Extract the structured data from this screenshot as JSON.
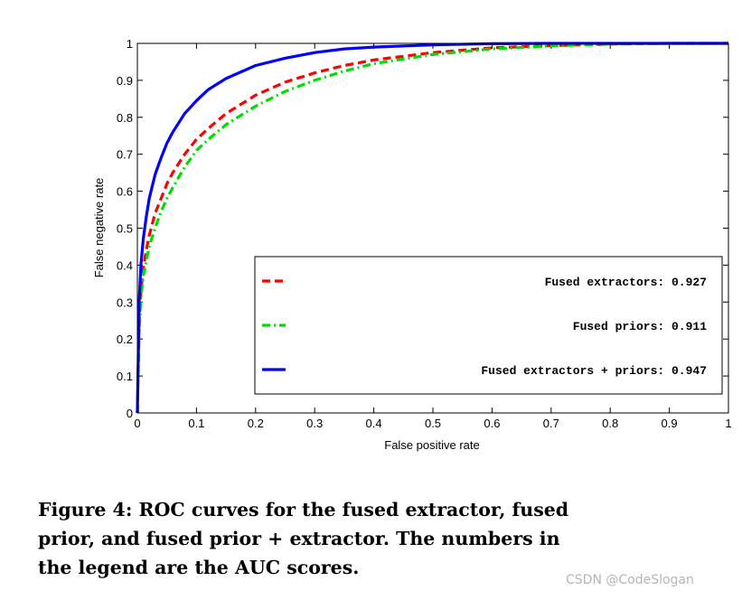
{
  "chart_data": {
    "type": "line",
    "title": "",
    "xlabel": "False positive rate",
    "ylabel": "False negative rate",
    "xlim": [
      0,
      1
    ],
    "ylim": [
      0,
      1
    ],
    "x_ticks": [
      0,
      0.1,
      0.2,
      0.3,
      0.4,
      0.5,
      0.6,
      0.7,
      0.8,
      0.9,
      1
    ],
    "y_ticks": [
      0,
      0.1,
      0.2,
      0.3,
      0.4,
      0.5,
      0.6,
      0.7,
      0.8,
      0.9,
      1
    ],
    "x_tick_labels": [
      "0",
      "0.1",
      "0.2",
      "0.3",
      "0.4",
      "0.5",
      "0.6",
      "0.7",
      "0.8",
      "0.9",
      "1"
    ],
    "y_tick_labels": [
      "0",
      "0.1",
      "0.2",
      "0.3",
      "0.4",
      "0.5",
      "0.6",
      "0.7",
      "0.8",
      "0.9",
      "1"
    ],
    "legend_position": "bottom-right",
    "series": [
      {
        "name": "Fused extractors: 0.927",
        "color": "#ff0000",
        "style": "dashed",
        "x": [
          0,
          0.003,
          0.006,
          0.01,
          0.015,
          0.02,
          0.03,
          0.04,
          0.05,
          0.06,
          0.08,
          0.1,
          0.12,
          0.15,
          0.2,
          0.25,
          0.3,
          0.35,
          0.4,
          0.5,
          0.6,
          0.7,
          0.8,
          0.9,
          1
        ],
        "y": [
          0,
          0.25,
          0.33,
          0.39,
          0.44,
          0.48,
          0.54,
          0.58,
          0.62,
          0.65,
          0.7,
          0.74,
          0.77,
          0.81,
          0.86,
          0.895,
          0.92,
          0.94,
          0.955,
          0.975,
          0.988,
          0.994,
          0.998,
          1,
          1
        ]
      },
      {
        "name": "Fused priors: 0.911",
        "color": "#00dd00",
        "style": "dashdot",
        "x": [
          0,
          0.003,
          0.006,
          0.01,
          0.015,
          0.02,
          0.03,
          0.04,
          0.05,
          0.06,
          0.08,
          0.1,
          0.12,
          0.15,
          0.2,
          0.25,
          0.3,
          0.35,
          0.4,
          0.5,
          0.6,
          0.7,
          0.8,
          0.9,
          1
        ],
        "y": [
          0,
          0.23,
          0.31,
          0.37,
          0.41,
          0.45,
          0.5,
          0.545,
          0.58,
          0.61,
          0.665,
          0.71,
          0.74,
          0.78,
          0.83,
          0.87,
          0.9,
          0.925,
          0.945,
          0.97,
          0.985,
          0.993,
          0.998,
          1,
          1
        ]
      },
      {
        "name": "Fused extractors + priors: 0.947",
        "color": "#0000ff",
        "style": "solid",
        "x": [
          0,
          0.003,
          0.006,
          0.01,
          0.015,
          0.02,
          0.03,
          0.04,
          0.05,
          0.06,
          0.08,
          0.1,
          0.12,
          0.15,
          0.2,
          0.25,
          0.3,
          0.35,
          0.4,
          0.5,
          0.6,
          0.7,
          0.8,
          0.9,
          1
        ],
        "y": [
          0,
          0.3,
          0.4,
          0.47,
          0.53,
          0.58,
          0.645,
          0.69,
          0.73,
          0.76,
          0.81,
          0.845,
          0.875,
          0.905,
          0.94,
          0.96,
          0.975,
          0.985,
          0.99,
          0.996,
          0.999,
          1,
          1,
          1,
          1
        ]
      }
    ]
  },
  "caption": {
    "lines": [
      "Figure 4: ROC curves for the fused extractor, fused",
      "prior, and fused prior + extractor. The numbers in",
      "the legend are the AUC scores."
    ]
  },
  "watermark": "CSDN @CodeSlogan"
}
